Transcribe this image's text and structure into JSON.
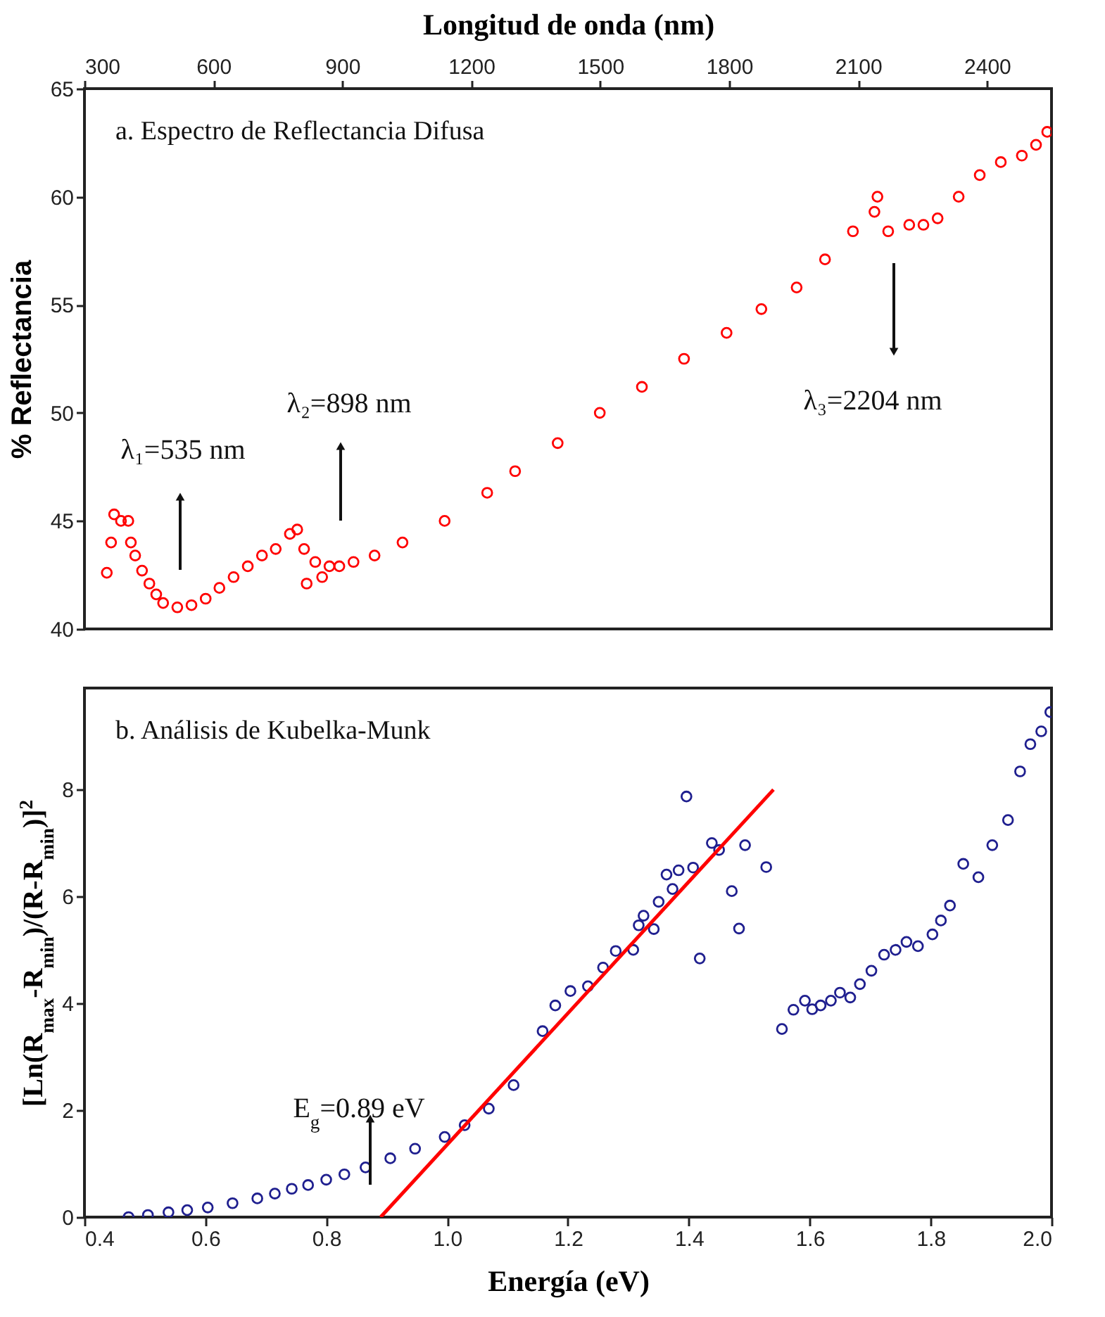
{
  "chart_data": [
    {
      "type": "scatter",
      "xlabel": "Longitud de onda (nm)",
      "ylabel": "% Reflectancia",
      "xlim": [
        300,
        2550
      ],
      "xticks": [
        300,
        600,
        900,
        1200,
        1500,
        1800,
        2100,
        2400
      ],
      "ylim": [
        40,
        65
      ],
      "yticks": [
        40,
        45,
        50,
        55,
        60,
        65
      ],
      "marker": "circle",
      "annotations": [
        "a. Espectro de Reflectancia Difusa",
        "λ₁=535 nm",
        "λ₂=898 nm",
        "λ₃=2204 nm"
      ],
      "series": [
        {
          "color": "#ff0000",
          "x": [
            352,
            362,
            369,
            385,
            402,
            408,
            418,
            434,
            451,
            467,
            483,
            516,
            549,
            582,
            614,
            647,
            680,
            713,
            745,
            778,
            795,
            811,
            817,
            837,
            853,
            870,
            893,
            926,
            975,
            1040,
            1138,
            1237,
            1302,
            1401,
            1499,
            1597,
            1695,
            1794,
            1875,
            1957,
            2023,
            2088,
            2138,
            2145,
            2170,
            2219,
            2252,
            2285,
            2334,
            2383,
            2432,
            2481,
            2514,
            2540
          ],
          "values": [
            42.6,
            44.0,
            45.3,
            45.0,
            45.0,
            44.0,
            43.4,
            42.7,
            42.1,
            41.6,
            41.2,
            41.0,
            41.1,
            41.4,
            41.9,
            42.4,
            42.9,
            43.4,
            43.7,
            44.4,
            44.6,
            43.7,
            42.1,
            43.1,
            42.4,
            42.9,
            42.9,
            43.1,
            43.4,
            44.0,
            45.0,
            46.3,
            47.3,
            48.6,
            50.0,
            51.2,
            52.5,
            53.7,
            54.8,
            55.8,
            57.1,
            58.4,
            59.3,
            60.0,
            58.4,
            58.7,
            58.7,
            59.0,
            60.0,
            61.0,
            61.6,
            61.9,
            62.4,
            63.0
          ]
        }
      ]
    },
    {
      "type": "scatter",
      "xlabel": "Energía (eV)",
      "ylabel": "[Ln(R$_{max}$-R$_{min}$)/(R-R$_{min}$)]$^{2}$",
      "xlim": [
        0.4,
        2.0
      ],
      "xticks": [
        0.4,
        0.6,
        0.8,
        {
          "value": 1,
          "label": "1.0"
        },
        1.2,
        1.4,
        1.6,
        1.8,
        {
          "value": 2,
          "label": "2.0"
        }
      ],
      "ylim": [
        0,
        9.9
      ],
      "yticks": [
        0,
        2,
        4,
        6,
        8
      ],
      "marker": "circle",
      "annotations": [
        "b. Análisis de Kubelka-Munk",
        "E$_{g}$=0.89 eV"
      ],
      "series": [
        {
          "color": "#1f1f8f",
          "x": [
            0.473,
            0.505,
            0.539,
            0.57,
            0.604,
            0.645,
            0.686,
            0.715,
            0.743,
            0.77,
            0.8,
            0.83,
            0.865,
            0.906,
            0.947,
            0.996,
            1.029,
            1.069,
            1.11,
            1.158,
            1.179,
            1.204,
            1.233,
            1.258,
            1.279,
            1.308,
            1.317,
            1.325,
            1.342,
            1.35,
            1.363,
            1.373,
            1.383,
            1.396,
            1.407,
            1.418,
            1.438,
            1.45,
            1.471,
            1.483,
            1.493,
            1.528,
            1.554,
            1.573,
            1.592,
            1.604,
            1.618,
            1.635,
            1.65,
            1.667,
            1.683,
            1.702,
            1.723,
            1.742,
            1.76,
            1.779,
            1.803,
            1.817,
            1.832,
            1.854,
            1.879,
            1.902,
            1.928,
            1.948,
            1.965,
            1.983,
            1.998
          ],
          "values": [
            0,
            0.04,
            0.09,
            0.13,
            0.18,
            0.26,
            0.35,
            0.44,
            0.53,
            0.6,
            0.7,
            0.8,
            0.93,
            1.1,
            1.28,
            1.5,
            1.72,
            2.03,
            2.47,
            3.48,
            3.96,
            4.23,
            4.32,
            4.67,
            4.98,
            5.0,
            5.46,
            5.64,
            5.39,
            5.9,
            6.41,
            6.14,
            6.49,
            7.87,
            6.54,
            4.84,
            7.0,
            6.87,
            6.1,
            5.4,
            6.96,
            6.55,
            3.52,
            3.88,
            4.05,
            3.89,
            3.96,
            4.05,
            4.2,
            4.11,
            4.36,
            4.61,
            4.91,
            5.0,
            5.15,
            5.07,
            5.29,
            5.55,
            5.83,
            6.61,
            6.36,
            6.96,
            7.43,
            8.34,
            8.85,
            9.09,
            9.45
          ]
        },
        {
          "type": "line",
          "marker": "none",
          "color": "#ff0000",
          "x": [
            0.89,
            1.54
          ],
          "values": [
            0,
            8.0
          ]
        }
      ]
    }
  ]
}
